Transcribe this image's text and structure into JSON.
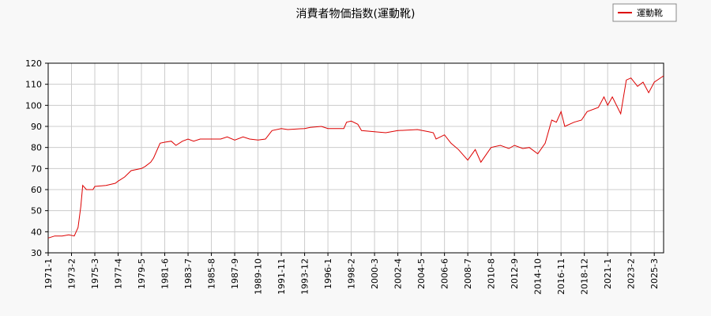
{
  "chart_data": {
    "type": "line",
    "title": "消費者物価指数(運動靴)",
    "x": [
      "1971-1",
      "1971-8",
      "1972-4",
      "1972-11",
      "1973-5",
      "1973-9",
      "1973-12",
      "1974-2",
      "1974-6",
      "1975-1",
      "1975-3",
      "1976-3",
      "1977-1",
      "1977-4",
      "1977-11",
      "1978-6",
      "1979-5",
      "1979-9",
      "1980-3",
      "1980-6",
      "1981-1",
      "1981-6",
      "1982-1",
      "1982-6",
      "1983-1",
      "1983-7",
      "1984-1",
      "1984-8",
      "1985-8",
      "1986-6",
      "1987-1",
      "1987-9",
      "1988-6",
      "1989-1",
      "1989-10",
      "1990-6",
      "1991-1",
      "1991-11",
      "1992-6",
      "1993-12",
      "1994-6",
      "1995-6",
      "1996-1",
      "1997-6",
      "1997-9",
      "1998-2",
      "1998-9",
      "1999-1",
      "2000-3",
      "2001-3",
      "2002-4",
      "2004-1",
      "2005-1",
      "2005-6",
      "2005-9",
      "2006-6",
      "2007-1",
      "2007-9",
      "2008-7",
      "2009-3",
      "2009-9",
      "2010-8",
      "2011-6",
      "2012-3",
      "2012-9",
      "2013-6",
      "2014-1",
      "2014-10",
      "2015-6",
      "2016-1",
      "2016-6",
      "2016-11",
      "2017-3",
      "2018-1",
      "2018-9",
      "2019-3",
      "2020-3",
      "2020-9",
      "2021-1",
      "2021-6",
      "2022-3",
      "2022-9",
      "2023-2",
      "2023-9",
      "2024-3",
      "2024-9",
      "2025-3",
      "2026-1"
    ],
    "series": [
      {
        "name": "運動靴",
        "color": "#dd0000",
        "values": [
          37,
          38,
          38,
          38.5,
          38,
          42,
          52,
          62,
          60,
          60,
          61.5,
          62,
          63,
          64,
          66,
          69,
          70,
          71,
          73,
          75,
          82,
          82.5,
          83,
          81,
          83,
          84,
          83,
          84,
          84,
          84,
          85,
          83.5,
          85,
          84,
          83.5,
          84,
          88,
          89,
          88.5,
          89,
          89.5,
          90,
          89,
          89,
          92,
          92.5,
          91,
          88,
          87.5,
          87,
          88,
          88.5,
          87.5,
          87,
          84,
          86,
          82,
          79,
          74,
          79,
          73,
          80,
          81,
          79.5,
          81,
          79.5,
          80,
          77,
          82,
          93,
          92,
          97,
          90,
          92,
          93,
          97,
          99,
          104,
          100,
          104,
          96,
          112,
          113,
          109,
          111,
          106,
          111,
          114
        ]
      }
    ],
    "xlim": [
      "1971-1",
      "2026-1"
    ],
    "xticks": [
      "1971-1",
      "1973-2",
      "1975-3",
      "1977-4",
      "1979-5",
      "1981-6",
      "1983-7",
      "1985-8",
      "1987-9",
      "1989-10",
      "1991-11",
      "1993-12",
      "1996-1",
      "1998-2",
      "2000-3",
      "2002-4",
      "2004-5",
      "2006-6",
      "2008-7",
      "2010-8",
      "2012-9",
      "2014-10",
      "2016-11",
      "2018-12",
      "2021-1",
      "2023-2",
      "2025-3"
    ],
    "ylim": [
      30,
      120
    ],
    "yticks": [
      30,
      40,
      50,
      60,
      70,
      80,
      90,
      100,
      110,
      120
    ],
    "grid": true,
    "legend": "top-right"
  }
}
